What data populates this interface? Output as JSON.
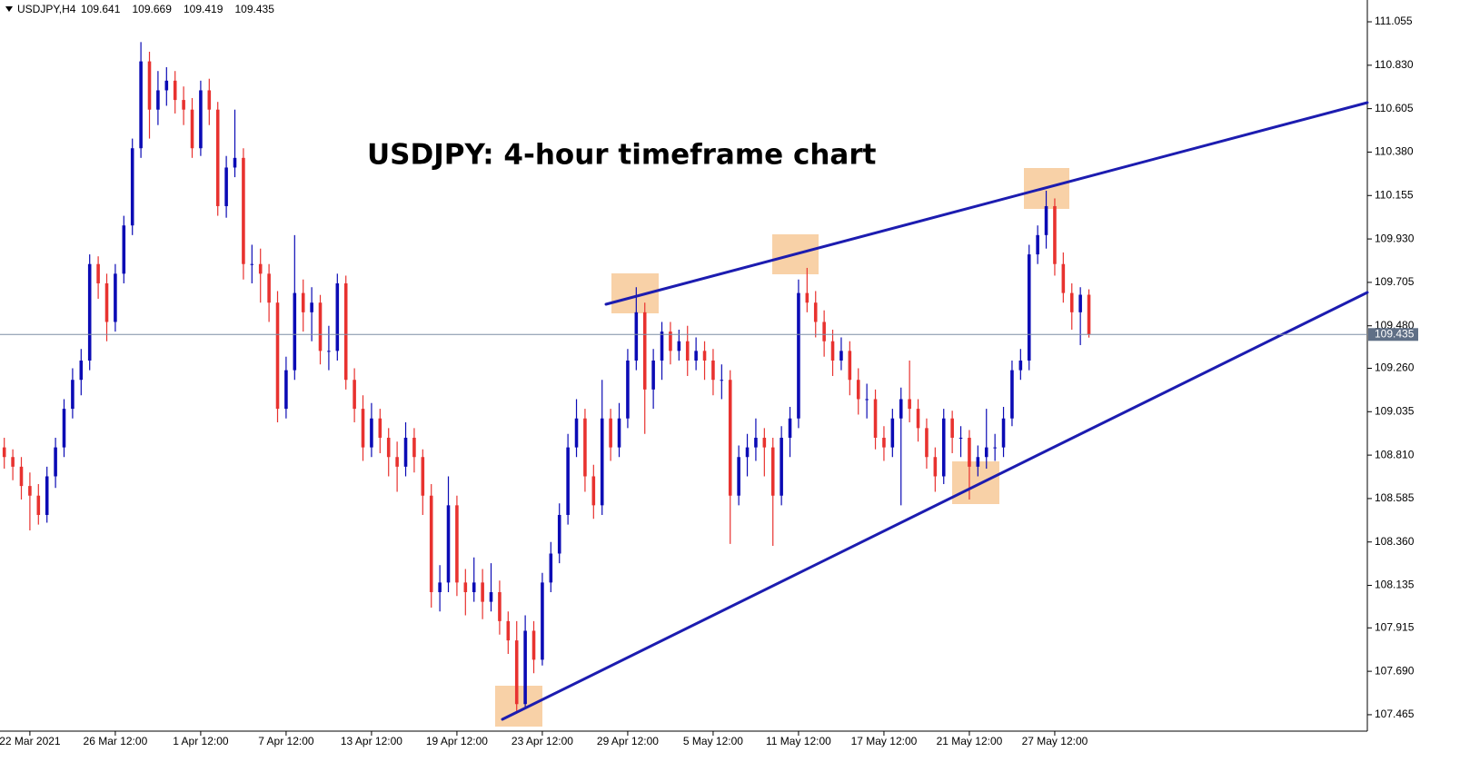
{
  "chart_data": {
    "type": "candlestick",
    "title": "USDJPY: 4-hour timeframe chart",
    "symbol": "USDJPY,H4",
    "up_color": "#0b0bb5",
    "down_color": "#e8322f",
    "open": [
      108.85,
      108.8,
      108.75,
      108.65,
      108.6,
      108.5,
      108.7,
      108.85,
      109.05,
      109.2,
      109.3,
      109.8,
      109.7,
      109.5,
      109.75,
      110.0,
      110.4,
      110.85,
      110.6,
      110.7,
      110.75,
      110.65,
      110.6,
      110.4,
      110.7,
      110.6,
      110.1,
      110.3,
      110.35,
      109.8,
      109.8,
      109.75,
      109.6,
      109.05,
      109.25,
      109.65,
      109.55,
      109.6,
      109.35,
      109.35,
      109.7,
      109.2,
      109.05,
      108.85,
      109.0,
      108.9,
      108.8,
      108.75,
      108.9,
      108.8,
      108.6,
      108.1,
      108.15,
      108.55,
      108.15,
      108.1,
      108.15,
      108.05,
      108.1,
      107.95,
      107.85,
      107.52,
      107.9,
      107.75,
      108.15,
      108.3,
      108.5,
      108.85,
      109.0,
      108.7,
      108.55,
      109.0,
      108.85,
      109.0,
      109.3,
      109.55,
      109.15,
      109.3,
      109.45,
      109.35,
      109.4,
      109.3,
      109.35,
      109.3,
      109.2,
      109.2,
      108.6,
      108.8,
      108.85,
      108.9,
      108.85,
      108.6,
      108.9,
      109.0,
      109.65,
      109.6,
      109.5,
      109.4,
      109.3,
      109.35,
      109.2,
      109.1,
      109.1,
      108.9,
      108.85,
      109.0,
      109.1,
      109.05,
      108.95,
      108.8,
      108.7,
      109.0,
      108.9,
      108.9,
      108.75,
      108.8,
      108.85,
      108.85,
      109.0,
      109.25,
      109.3,
      109.85,
      109.95,
      110.1,
      109.8,
      109.65,
      109.55,
      109.641
    ],
    "high": [
      108.9,
      108.84,
      108.8,
      108.72,
      108.66,
      108.75,
      108.9,
      109.1,
      109.26,
      109.36,
      109.85,
      109.84,
      109.75,
      109.8,
      110.05,
      110.45,
      110.95,
      110.9,
      110.8,
      110.82,
      110.8,
      110.72,
      110.66,
      110.75,
      110.76,
      110.64,
      110.36,
      110.6,
      110.4,
      109.9,
      109.88,
      109.8,
      109.66,
      109.32,
      109.95,
      109.72,
      109.68,
      109.64,
      109.48,
      109.75,
      109.74,
      109.26,
      109.12,
      109.08,
      109.05,
      108.95,
      108.88,
      108.98,
      108.95,
      108.84,
      108.66,
      108.24,
      108.7,
      108.6,
      108.22,
      108.28,
      108.22,
      108.25,
      108.16,
      108.0,
      107.95,
      107.98,
      107.95,
      108.2,
      108.36,
      108.56,
      108.92,
      109.1,
      109.05,
      108.76,
      109.2,
      109.05,
      109.08,
      109.36,
      109.68,
      109.6,
      109.36,
      109.5,
      109.5,
      109.46,
      109.48,
      109.42,
      109.4,
      109.36,
      109.28,
      109.25,
      108.86,
      108.92,
      109.0,
      108.95,
      108.9,
      108.96,
      109.06,
      109.72,
      109.78,
      109.66,
      109.56,
      109.46,
      109.42,
      109.4,
      109.26,
      109.18,
      109.15,
      108.96,
      109.05,
      109.16,
      109.3,
      109.1,
      109.0,
      108.85,
      109.05,
      109.04,
      108.96,
      108.94,
      108.86,
      109.05,
      108.92,
      109.06,
      109.3,
      109.36,
      109.9,
      110.0,
      110.18,
      110.14,
      109.86,
      109.7,
      109.68,
      109.669
    ],
    "low": [
      108.74,
      108.68,
      108.58,
      108.42,
      108.45,
      108.46,
      108.64,
      108.8,
      109.0,
      109.12,
      109.25,
      109.62,
      109.4,
      109.45,
      109.7,
      109.95,
      110.35,
      110.45,
      110.52,
      110.62,
      110.58,
      110.52,
      110.35,
      110.36,
      110.52,
      110.05,
      110.04,
      110.25,
      109.72,
      109.7,
      109.6,
      109.5,
      108.98,
      109.0,
      109.2,
      109.45,
      109.4,
      109.28,
      109.25,
      109.3,
      109.15,
      108.98,
      108.78,
      108.8,
      108.82,
      108.7,
      108.62,
      108.7,
      108.72,
      108.5,
      108.02,
      108.0,
      108.1,
      108.08,
      107.98,
      108.05,
      107.96,
      108.0,
      107.88,
      107.78,
      107.48,
      107.5,
      107.68,
      107.72,
      108.1,
      108.25,
      108.45,
      108.8,
      108.62,
      108.48,
      108.5,
      108.78,
      108.8,
      108.95,
      109.25,
      108.92,
      109.05,
      109.2,
      109.28,
      109.3,
      109.22,
      109.25,
      109.2,
      109.12,
      109.1,
      108.35,
      108.55,
      108.7,
      108.78,
      108.7,
      108.34,
      108.55,
      108.8,
      108.95,
      109.55,
      109.42,
      109.32,
      109.22,
      109.25,
      109.12,
      109.02,
      109.0,
      108.84,
      108.78,
      108.8,
      108.55,
      108.98,
      108.88,
      108.74,
      108.62,
      108.66,
      108.82,
      108.8,
      108.58,
      108.7,
      108.74,
      108.78,
      108.8,
      108.96,
      109.2,
      109.25,
      109.8,
      109.88,
      109.74,
      109.6,
      109.46,
      109.38,
      109.419
    ],
    "close": [
      108.8,
      108.75,
      108.65,
      108.6,
      108.5,
      108.7,
      108.85,
      109.05,
      109.2,
      109.3,
      109.8,
      109.7,
      109.5,
      109.75,
      110.0,
      110.4,
      110.85,
      110.6,
      110.7,
      110.75,
      110.65,
      110.6,
      110.4,
      110.7,
      110.6,
      110.1,
      110.3,
      110.35,
      109.8,
      109.8,
      109.75,
      109.6,
      109.05,
      109.25,
      109.65,
      109.55,
      109.6,
      109.35,
      109.35,
      109.7,
      109.2,
      109.05,
      108.85,
      109.0,
      108.9,
      108.8,
      108.75,
      108.9,
      108.8,
      108.6,
      108.1,
      108.15,
      108.55,
      108.15,
      108.1,
      108.15,
      108.05,
      108.1,
      107.95,
      107.85,
      107.52,
      107.9,
      107.75,
      108.15,
      108.3,
      108.5,
      108.85,
      109.0,
      108.7,
      108.55,
      109.0,
      108.85,
      109.0,
      109.3,
      109.55,
      109.15,
      109.3,
      109.45,
      109.35,
      109.4,
      109.3,
      109.35,
      109.3,
      109.2,
      109.2,
      108.6,
      108.8,
      108.85,
      108.9,
      108.85,
      108.6,
      108.9,
      109.0,
      109.65,
      109.6,
      109.5,
      109.4,
      109.3,
      109.35,
      109.2,
      109.1,
      109.1,
      108.9,
      108.85,
      109.0,
      109.1,
      109.05,
      108.95,
      108.8,
      108.7,
      109.0,
      108.9,
      108.9,
      108.75,
      108.8,
      108.85,
      108.85,
      109.0,
      109.25,
      109.3,
      109.85,
      109.95,
      110.1,
      109.8,
      109.65,
      109.55,
      109.641,
      109.435
    ],
    "xlim": [
      -0.5,
      159.6
    ],
    "xticks": [
      {
        "value": 3,
        "label": "22 Mar 2021"
      },
      {
        "value": 13,
        "label": "26 Mar 12:00"
      },
      {
        "value": 23,
        "label": "1 Apr 12:00"
      },
      {
        "value": 33,
        "label": "7 Apr 12:00"
      },
      {
        "value": 43,
        "label": "13 Apr 12:00"
      },
      {
        "value": 53,
        "label": "19 Apr 12:00"
      },
      {
        "value": 63,
        "label": "23 Apr 12:00"
      },
      {
        "value": 73,
        "label": "29 Apr 12:00"
      },
      {
        "value": 83,
        "label": "5 May 12:00"
      },
      {
        "value": 93,
        "label": "11 May 12:00"
      },
      {
        "value": 103,
        "label": "17 May 12:00"
      },
      {
        "value": 113,
        "label": "21 May 12:00"
      },
      {
        "value": 123,
        "label": "27 May 12:00"
      }
    ],
    "ylim": [
      107.38,
      111.168
    ],
    "yticks": [
      111.055,
      {
        "value": 110.83,
        "label": "110.830"
      },
      110.605,
      {
        "value": 110.38,
        "label": "110.380"
      },
      110.155,
      {
        "value": 109.93,
        "label": "109.930"
      },
      109.705,
      {
        "value": 109.48,
        "label": "109.480"
      },
      {
        "value": 109.26,
        "label": "109.260"
      },
      109.035,
      {
        "value": 108.81,
        "label": "108.810"
      },
      108.585,
      {
        "value": 108.36,
        "label": "108.360"
      },
      108.135,
      107.915,
      {
        "value": 107.69,
        "label": "107.690"
      },
      107.465
    ]
  }
}
